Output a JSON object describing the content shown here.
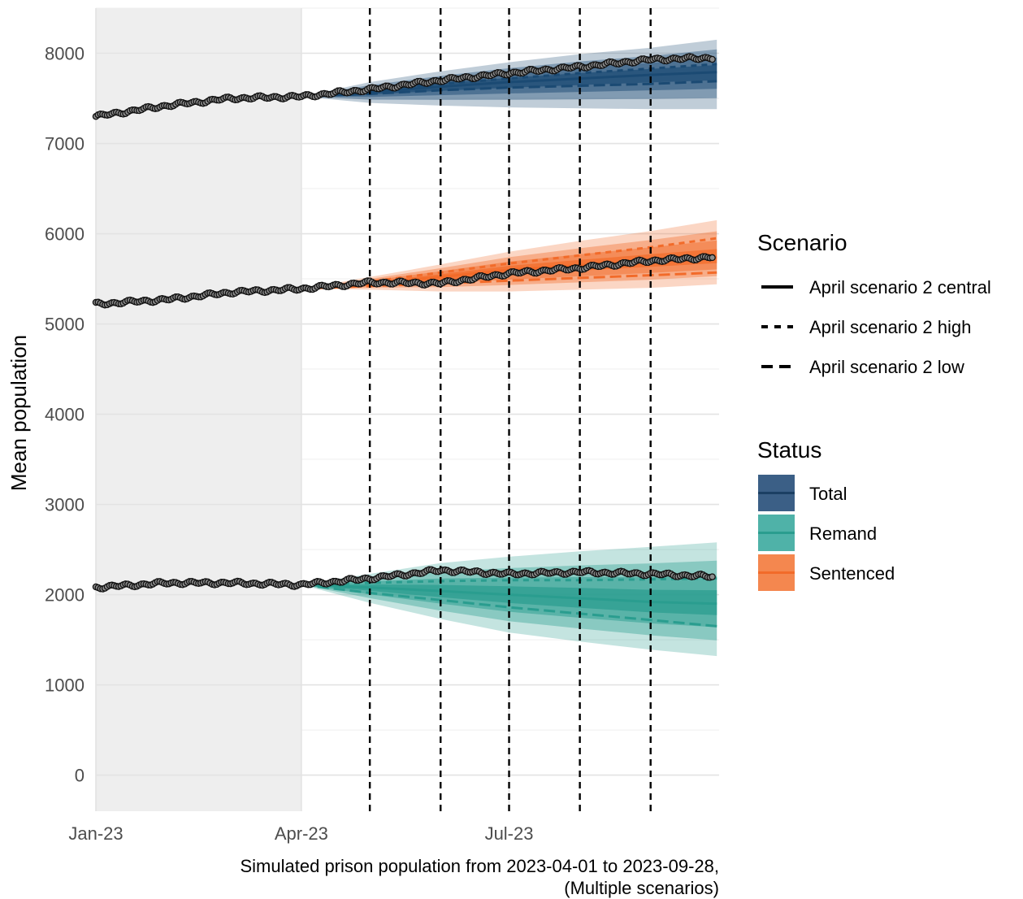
{
  "chart_data": {
    "type": "line",
    "title": "",
    "xlabel_line1": "Simulated prison population from 2023-04-01 to 2023-09-28,",
    "xlabel_line2": "(Multiple scenarios)",
    "ylabel": "Mean population",
    "ylim": [
      -400,
      8500
    ],
    "y_ticks": [
      "0",
      "1000",
      "2000",
      "3000",
      "4000",
      "5000",
      "6000",
      "7000",
      "8000"
    ],
    "x_range": [
      "2023-01-01",
      "2023-10-01"
    ],
    "x_ticks": [
      {
        "date": "2023-01-01",
        "label": "Jan-23"
      },
      {
        "date": "2023-04-01",
        "label": "Apr-23"
      },
      {
        "date": "2023-07-01",
        "label": "Jul-23"
      }
    ],
    "shaded_history": [
      "2023-01-01",
      "2023-04-01"
    ],
    "vertical_markers": [
      "2023-05-01",
      "2023-06-01",
      "2023-07-01",
      "2023-08-01",
      "2023-09-01"
    ],
    "grid": true,
    "legend_position": "right",
    "scenario_legend": {
      "title": "Scenario",
      "items": [
        {
          "label": "April scenario 2 central",
          "dash": "solid"
        },
        {
          "label": "April scenario 2 high",
          "dash": "dashed"
        },
        {
          "label": "April scenario 2 low",
          "dash": "longdash"
        }
      ]
    },
    "status_legend": {
      "title": "Status",
      "items": [
        {
          "label": "Total",
          "fill": "#3b5f86",
          "line": "#1b3f63"
        },
        {
          "label": "Remand",
          "fill": "#4fb2a8",
          "line": "#2a9d8f"
        },
        {
          "label": "Sentenced",
          "fill": "#f4874f",
          "line": "#f26b2a"
        }
      ]
    },
    "series": [
      {
        "name": "Total",
        "color": "#1b4a73",
        "observed": [
          [
            "2023-01-01",
            7300
          ],
          [
            "2023-02-01",
            7420
          ],
          [
            "2023-03-01",
            7500
          ],
          [
            "2023-04-01",
            7520
          ],
          [
            "2023-05-01",
            7600
          ],
          [
            "2023-06-01",
            7700
          ],
          [
            "2023-07-01",
            7780
          ],
          [
            "2023-08-01",
            7850
          ],
          [
            "2023-09-01",
            7930
          ],
          [
            "2023-09-28",
            7950
          ]
        ],
        "projection": {
          "dates": [
            "2023-04-01",
            "2023-05-01",
            "2023-06-01",
            "2023-07-01",
            "2023-08-01",
            "2023-09-01",
            "2023-09-30"
          ],
          "central": [
            7520,
            7570,
            7630,
            7680,
            7720,
            7760,
            7790
          ],
          "high": [
            7520,
            7590,
            7660,
            7720,
            7780,
            7830,
            7880
          ],
          "low": [
            7520,
            7550,
            7590,
            7620,
            7640,
            7660,
            7690
          ],
          "outer_lower": [
            7520,
            7450,
            7420,
            7400,
            7390,
            7380,
            7380
          ],
          "outer_upper": [
            7520,
            7680,
            7800,
            7900,
            7990,
            8060,
            8150
          ]
        }
      },
      {
        "name": "Sentenced",
        "color": "#f26b2a",
        "observed": [
          [
            "2023-01-01",
            5220
          ],
          [
            "2023-02-01",
            5270
          ],
          [
            "2023-03-01",
            5350
          ],
          [
            "2023-04-01",
            5390
          ],
          [
            "2023-05-01",
            5460
          ],
          [
            "2023-06-01",
            5450
          ],
          [
            "2023-07-01",
            5560
          ],
          [
            "2023-08-01",
            5620
          ],
          [
            "2023-09-01",
            5700
          ],
          [
            "2023-09-28",
            5740
          ]
        ],
        "projection": {
          "dates": [
            "2023-04-01",
            "2023-05-01",
            "2023-06-01",
            "2023-07-01",
            "2023-08-01",
            "2023-09-01",
            "2023-09-30"
          ],
          "central": [
            5390,
            5450,
            5520,
            5600,
            5650,
            5700,
            5740
          ],
          "high": [
            5390,
            5470,
            5570,
            5670,
            5760,
            5850,
            5950
          ],
          "low": [
            5390,
            5420,
            5450,
            5480,
            5510,
            5540,
            5570
          ],
          "outer_lower": [
            5390,
            5380,
            5360,
            5360,
            5380,
            5400,
            5440
          ],
          "outer_upper": [
            5390,
            5520,
            5660,
            5800,
            5920,
            6030,
            6150
          ]
        }
      },
      {
        "name": "Remand",
        "color": "#2a9d8f",
        "observed": [
          [
            "2023-01-01",
            2080
          ],
          [
            "2023-02-01",
            2130
          ],
          [
            "2023-03-01",
            2130
          ],
          [
            "2023-04-01",
            2110
          ],
          [
            "2023-05-01",
            2180
          ],
          [
            "2023-06-01",
            2270
          ],
          [
            "2023-07-01",
            2230
          ],
          [
            "2023-08-01",
            2250
          ],
          [
            "2023-09-01",
            2230
          ],
          [
            "2023-09-28",
            2200
          ]
        ],
        "projection": {
          "dates": [
            "2023-04-01",
            "2023-05-01",
            "2023-06-01",
            "2023-07-01",
            "2023-08-01",
            "2023-09-01",
            "2023-09-30"
          ],
          "central": [
            2110,
            2080,
            2040,
            2000,
            1960,
            1920,
            1900
          ],
          "high": [
            2110,
            2130,
            2150,
            2160,
            2160,
            2170,
            2180
          ],
          "low": [
            2110,
            2020,
            1940,
            1860,
            1790,
            1720,
            1650
          ],
          "outer_lower": [
            2110,
            1910,
            1730,
            1580,
            1480,
            1390,
            1320
          ],
          "outer_upper": [
            2110,
            2230,
            2350,
            2420,
            2480,
            2530,
            2580
          ]
        }
      }
    ]
  }
}
